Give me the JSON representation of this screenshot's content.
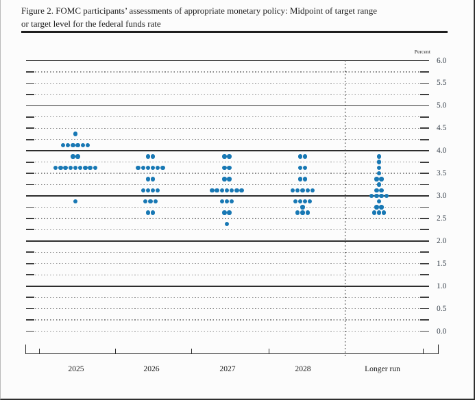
{
  "header": {
    "title_line1": "Figure 2. FOMC participants’ assessments of appropriate monetary policy: Midpoint of target range",
    "title_line2": "or target level for the federal funds rate"
  },
  "chart_data": {
    "type": "scatter",
    "subtype": "fomc-dot-plot",
    "title": "Figure 2. FOMC participants’ assessments of appropriate monetary policy: Midpoint of target range or target level for the federal funds rate",
    "ylabel": "Percent",
    "ylim": [
      0.0,
      6.0
    ],
    "y_minor_step": 0.25,
    "y_label_step": 0.5,
    "grid": "dotted minor lines every 0.25, solid dark lines at whole percents, dashed vertical divider before Longer run",
    "legend_position": "none",
    "ytick_labels": [
      "6.0",
      "5.5",
      "5.0",
      "4.5",
      "4.0",
      "3.5",
      "3.0",
      "2.5",
      "2.0",
      "1.5",
      "1.0",
      "0.5",
      "0.0"
    ],
    "categories": [
      "2025",
      "2026",
      "2027",
      "2028",
      "Longer run"
    ],
    "dot_color": "#1878b4",
    "series": [
      {
        "name": "2025",
        "dots": [
          {
            "rate": 4.375,
            "count": 1
          },
          {
            "rate": 4.125,
            "count": 6
          },
          {
            "rate": 3.875,
            "count": 2
          },
          {
            "rate": 3.625,
            "count": 9
          },
          {
            "rate": 2.875,
            "count": 1
          }
        ]
      },
      {
        "name": "2026",
        "dots": [
          {
            "rate": 3.875,
            "count": 2
          },
          {
            "rate": 3.625,
            "count": 6
          },
          {
            "rate": 3.375,
            "count": 2
          },
          {
            "rate": 3.125,
            "count": 4
          },
          {
            "rate": 2.875,
            "count": 3
          },
          {
            "rate": 2.625,
            "count": 2
          }
        ]
      },
      {
        "name": "2027",
        "dots": [
          {
            "rate": 3.875,
            "count": 2
          },
          {
            "rate": 3.625,
            "count": 2
          },
          {
            "rate": 3.375,
            "count": 2
          },
          {
            "rate": 3.125,
            "count": 7
          },
          {
            "rate": 2.875,
            "count": 3
          },
          {
            "rate": 2.625,
            "count": 2
          },
          {
            "rate": 2.375,
            "count": 1
          }
        ]
      },
      {
        "name": "2028",
        "dots": [
          {
            "rate": 3.875,
            "count": 2
          },
          {
            "rate": 3.625,
            "count": 2
          },
          {
            "rate": 3.375,
            "count": 2
          },
          {
            "rate": 3.125,
            "count": 5
          },
          {
            "rate": 2.875,
            "count": 4
          },
          {
            "rate": 2.75,
            "count": 1
          },
          {
            "rate": 2.625,
            "count": 3
          }
        ]
      },
      {
        "name": "Longer run",
        "dots": [
          {
            "rate": 3.875,
            "count": 1
          },
          {
            "rate": 3.75,
            "count": 1
          },
          {
            "rate": 3.625,
            "count": 1
          },
          {
            "rate": 3.5,
            "count": 1
          },
          {
            "rate": 3.375,
            "count": 2
          },
          {
            "rate": 3.25,
            "count": 1
          },
          {
            "rate": 3.125,
            "count": 2
          },
          {
            "rate": 3.0,
            "count": 4
          },
          {
            "rate": 2.875,
            "count": 1
          },
          {
            "rate": 2.75,
            "count": 2
          },
          {
            "rate": 2.625,
            "count": 3
          }
        ]
      }
    ]
  }
}
